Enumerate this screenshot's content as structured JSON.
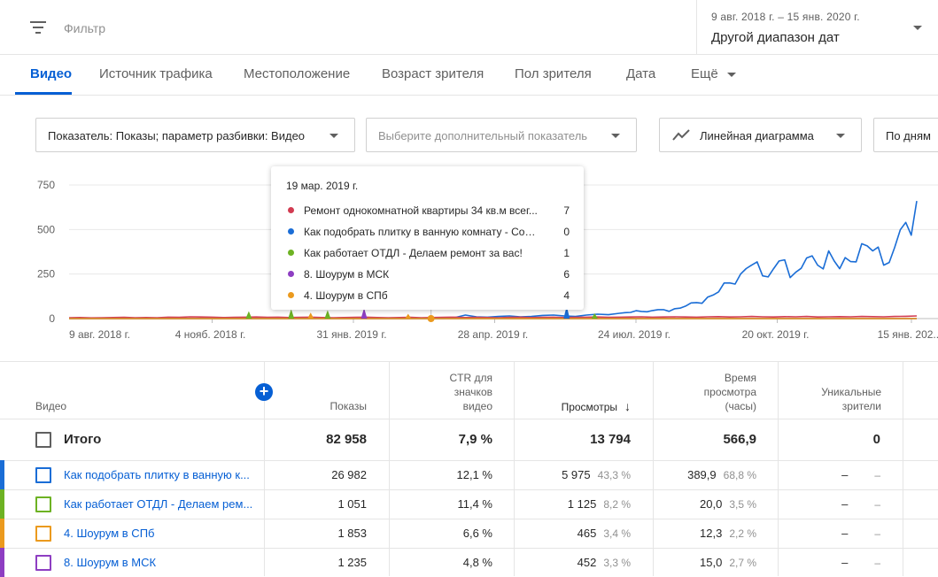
{
  "topbar": {
    "filter_placeholder": "Фильтр",
    "date_range_sub": "9 авг. 2018 г. – 15 янв. 2020 г.",
    "date_range_main": "Другой диапазон дат"
  },
  "tabs": [
    {
      "label": "Видео",
      "active": true
    },
    {
      "label": "Источник трафика"
    },
    {
      "label": "Местоположение"
    },
    {
      "label": "Возраст зрителя"
    },
    {
      "label": "Пол зрителя"
    },
    {
      "label": "Дата"
    },
    {
      "label": "Ещё"
    }
  ],
  "controls": {
    "metric": "Показатель: Показы; параметр разбивки: Видео",
    "secondary_metric": "Выберите дополнительный показатель",
    "chart_type": "Линейная диаграмма",
    "granularity": "По дням"
  },
  "colors": {
    "accent": "#065fd4",
    "series_red": "#d23b51",
    "series_blue": "#1a6dd6",
    "series_green": "#6db223",
    "series_purple": "#8e3ec2",
    "series_orange": "#eb9a1e"
  },
  "chart_data": {
    "type": "line",
    "y_ticks": [
      "750",
      "500",
      "250",
      "0"
    ],
    "ylim": [
      0,
      750
    ],
    "x_tick_labels": [
      "9 авг. 2018 г.",
      "4 нояб. 2018 г.",
      "31 янв. 2019 г.",
      "28 апр. 2019 г.",
      "24 июл. 2019 г.",
      "20 окт. 2019 г.",
      "15 янв. 202..."
    ],
    "series": [
      {
        "name": "Как подобрать плитку в ванную комнату",
        "color": "#1a6dd6",
        "approx_weekly": [
          0,
          0,
          0,
          0,
          0,
          0,
          0,
          0,
          0,
          0,
          0,
          0,
          0,
          0,
          0,
          0,
          0,
          0,
          0,
          0,
          0,
          0,
          0,
          0,
          0,
          0,
          0,
          0,
          0,
          0,
          0,
          0,
          0,
          0,
          0,
          5,
          20,
          10,
          8,
          12,
          15,
          10,
          12,
          18,
          20,
          15,
          12,
          20,
          25,
          22,
          30,
          35,
          40,
          45,
          50,
          55,
          70,
          90,
          120,
          150,
          200,
          250,
          300,
          240,
          280,
          330,
          260,
          340,
          300,
          380,
          280,
          320,
          420,
          380,
          300,
          400,
          540,
          660
        ]
      },
      {
        "name": "Ремонт однокомнатной квартиры 34 кв.м",
        "color": "#d23b51",
        "approx_weekly": [
          5,
          6,
          4,
          5,
          6,
          7,
          5,
          6,
          5,
          8,
          7,
          10,
          9,
          8,
          6,
          7,
          8,
          9,
          7,
          8,
          6,
          7,
          8,
          6,
          5,
          6,
          7,
          8,
          6,
          5,
          6,
          7,
          5,
          6,
          7,
          8,
          6,
          7,
          6,
          5,
          7,
          8,
          6,
          7,
          8,
          6,
          7,
          8,
          9,
          7,
          8,
          9,
          10,
          8,
          9,
          10,
          9,
          8,
          10,
          11,
          9,
          10,
          12,
          10,
          9,
          11,
          10,
          12,
          9,
          10,
          11,
          10,
          12,
          11,
          10,
          12,
          13,
          15
        ]
      },
      {
        "name": "Как работает ОТДЛ - Делаем ремонт за вас!",
        "color": "#6db223",
        "approx_weekly": [
          0,
          0,
          0,
          0,
          0,
          0,
          0,
          0,
          0,
          0,
          0,
          0,
          0,
          0,
          0,
          0,
          0,
          0,
          0,
          0,
          0,
          0,
          0,
          0,
          0,
          0,
          0,
          0,
          0,
          0,
          0,
          0,
          0,
          0,
          0,
          0,
          0,
          0,
          0,
          0,
          0,
          0,
          0,
          0,
          0,
          0,
          0,
          0,
          0,
          0,
          0,
          0,
          0,
          0,
          0,
          0,
          0,
          0,
          0,
          0,
          0,
          0,
          0,
          0,
          0,
          0,
          0,
          0,
          0,
          0,
          0,
          0,
          0,
          0,
          0,
          0,
          0,
          0
        ]
      },
      {
        "name": "8. Шоурум в МСК",
        "color": "#8e3ec2",
        "approx_weekly": [
          0,
          0,
          0,
          0,
          0,
          0,
          0,
          0,
          0,
          0,
          0,
          0,
          0,
          0,
          0,
          0,
          0,
          0,
          0,
          0,
          0,
          0,
          0,
          0,
          0,
          0,
          0,
          0,
          0,
          0,
          0,
          0,
          0,
          0,
          0,
          0,
          0,
          0,
          0,
          0,
          0,
          0,
          0,
          0,
          0,
          0,
          0,
          0,
          0,
          0,
          0,
          0,
          0,
          0,
          0,
          0,
          0,
          0,
          0,
          0,
          0,
          0,
          0,
          0,
          0,
          0,
          0,
          0,
          0,
          0,
          0,
          0,
          0,
          0,
          0,
          0,
          0,
          0
        ]
      },
      {
        "name": "4. Шоурум в СПб",
        "color": "#eb9a1e",
        "approx_weekly": [
          0,
          0,
          0,
          0,
          0,
          0,
          0,
          0,
          0,
          0,
          0,
          0,
          0,
          0,
          0,
          0,
          0,
          0,
          0,
          0,
          0,
          0,
          0,
          0,
          0,
          0,
          0,
          0,
          0,
          0,
          0,
          0,
          0,
          0,
          0,
          0,
          0,
          0,
          0,
          0,
          0,
          0,
          0,
          0,
          0,
          0,
          0,
          0,
          0,
          0,
          0,
          0,
          0,
          0,
          0,
          0,
          0,
          0,
          0,
          0,
          0,
          0,
          0,
          0,
          0,
          0,
          0,
          0,
          0,
          0,
          0,
          0,
          0,
          0,
          0,
          0,
          0,
          0
        ]
      }
    ],
    "early_spikes": [
      {
        "color": "#6db223",
        "pos": 0.212,
        "v": 35
      },
      {
        "color": "#6db223",
        "pos": 0.262,
        "v": 45
      },
      {
        "color": "#eb9a1e",
        "pos": 0.285,
        "v": 28
      },
      {
        "color": "#6db223",
        "pos": 0.305,
        "v": 40
      },
      {
        "color": "#8e3ec2",
        "pos": 0.348,
        "v": 50
      },
      {
        "color": "#eb9a1e",
        "pos": 0.4,
        "v": 22
      },
      {
        "color": "#1a6dd6",
        "pos": 0.587,
        "v": 60
      },
      {
        "color": "#6db223",
        "pos": 0.62,
        "v": 25
      }
    ],
    "hover_pos": 0.427
  },
  "tooltip": {
    "date": "19 мар. 2019 г.",
    "rows": [
      {
        "name": "Ремонт однокомнатной квартиры 34 кв.м всег...",
        "value": "7",
        "color": "#d23b51"
      },
      {
        "name": "Как подобрать плитку в ванную комнату - Сове...",
        "value": "0",
        "color": "#1a6dd6"
      },
      {
        "name": "Как работает ОТДЛ - Делаем ремонт за вас!",
        "value": "1",
        "color": "#6db223"
      },
      {
        "name": "8. Шоурум в МСК",
        "value": "6",
        "color": "#8e3ec2"
      },
      {
        "name": "4. Шоурум в СПб",
        "value": "4",
        "color": "#eb9a1e"
      }
    ]
  },
  "table": {
    "headers": {
      "video": "Видео",
      "impressions": "Показы",
      "ctr": "CTR для значков видео",
      "views": "Просмотры",
      "watch_time": "Время просмотра (часы)",
      "unique": "Уникальные зрители"
    },
    "total": {
      "label": "Итого",
      "impressions": "82 958",
      "ctr": "7,9 %",
      "views": "13 794",
      "watch_time": "566,9",
      "unique": "0"
    },
    "rows": [
      {
        "title": "Как подобрать плитку в ванную к...",
        "impressions": "26 982",
        "ctr": "12,1 %",
        "views": "5 975",
        "views_pct": "43,3 %",
        "watch": "389,9",
        "watch_pct": "68,8 %",
        "unique": "–",
        "unique_pct": "–",
        "color": "#1a6dd6"
      },
      {
        "title": "Как работает ОТДЛ - Делаем рем...",
        "impressions": "1 051",
        "ctr": "11,4 %",
        "views": "1 125",
        "views_pct": "8,2 %",
        "watch": "20,0",
        "watch_pct": "3,5 %",
        "unique": "–",
        "unique_pct": "–",
        "color": "#6db223"
      },
      {
        "title": "4. Шоурум в СПб",
        "impressions": "1 853",
        "ctr": "6,6 %",
        "views": "465",
        "views_pct": "3,4 %",
        "watch": "12,3",
        "watch_pct": "2,2 %",
        "unique": "–",
        "unique_pct": "–",
        "color": "#eb9a1e"
      },
      {
        "title": "8. Шоурум в МСК",
        "impressions": "1 235",
        "ctr": "4,8 %",
        "views": "452",
        "views_pct": "3,3 %",
        "watch": "15,0",
        "watch_pct": "2,7 %",
        "unique": "–",
        "unique_pct": "–",
        "color": "#8e3ec2"
      }
    ]
  }
}
